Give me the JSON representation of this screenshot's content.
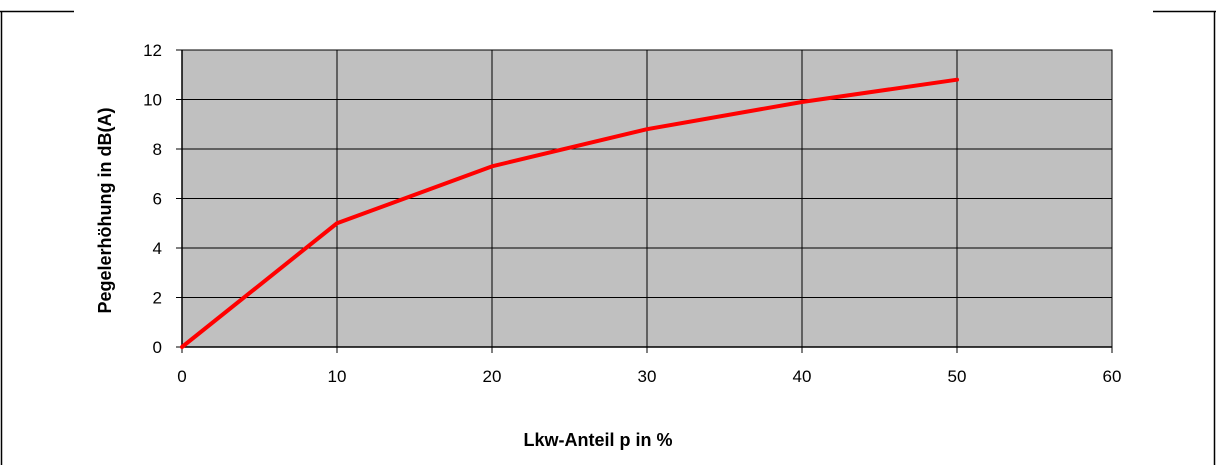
{
  "chart_data": {
    "type": "line",
    "title": "",
    "xlabel": "Lkw-Anteil p in %",
    "ylabel": "Pegelerhöhung in dB(A)",
    "xlim": [
      0,
      60
    ],
    "ylim": [
      0,
      12
    ],
    "x_ticks": [
      0,
      10,
      20,
      30,
      40,
      50,
      60
    ],
    "y_ticks": [
      0,
      2,
      4,
      6,
      8,
      10,
      12
    ],
    "grid": true,
    "legend": "none",
    "plot_background": "#c0c0c0",
    "series": [
      {
        "color": "#ff0000",
        "x": [
          0,
          10,
          20,
          30,
          40,
          50
        ],
        "values": [
          0,
          5.0,
          7.3,
          8.8,
          9.9,
          10.8
        ]
      }
    ]
  }
}
